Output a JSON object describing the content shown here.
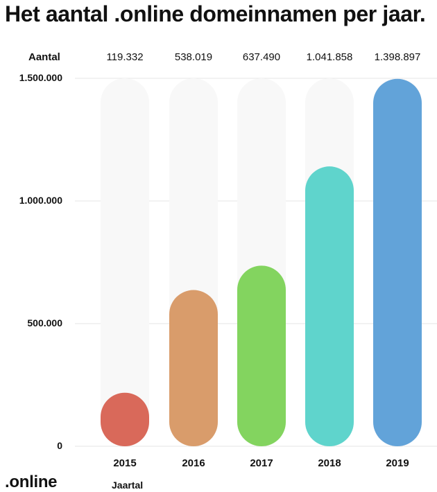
{
  "chart_data": {
    "type": "bar",
    "title": "Het aantal .online domeinnamen per jaar.",
    "header_label": "Aantal",
    "categories": [
      "2015",
      "2016",
      "2017",
      "2018",
      "2019"
    ],
    "values": [
      119332,
      538019,
      637490,
      1041858,
      1398897
    ],
    "value_labels": [
      "119.332",
      "538.019",
      "637.490",
      "1.041.858",
      "1.398.897"
    ],
    "colors": [
      "#d9695a",
      "#d99c6b",
      "#83d45f",
      "#5fd4cc",
      "#62a3d9"
    ],
    "track_color": "#f8f8f8",
    "yticks": [
      0,
      500000,
      1000000,
      1500000
    ],
    "ytick_labels": [
      "0",
      "500.000",
      "1.000.000",
      "1.500.000"
    ],
    "ylim": [
      0,
      1500000
    ],
    "xlabel": "Jaartal",
    "ylabel": "",
    "grid": true,
    "legend": "none"
  },
  "brand": ".online"
}
